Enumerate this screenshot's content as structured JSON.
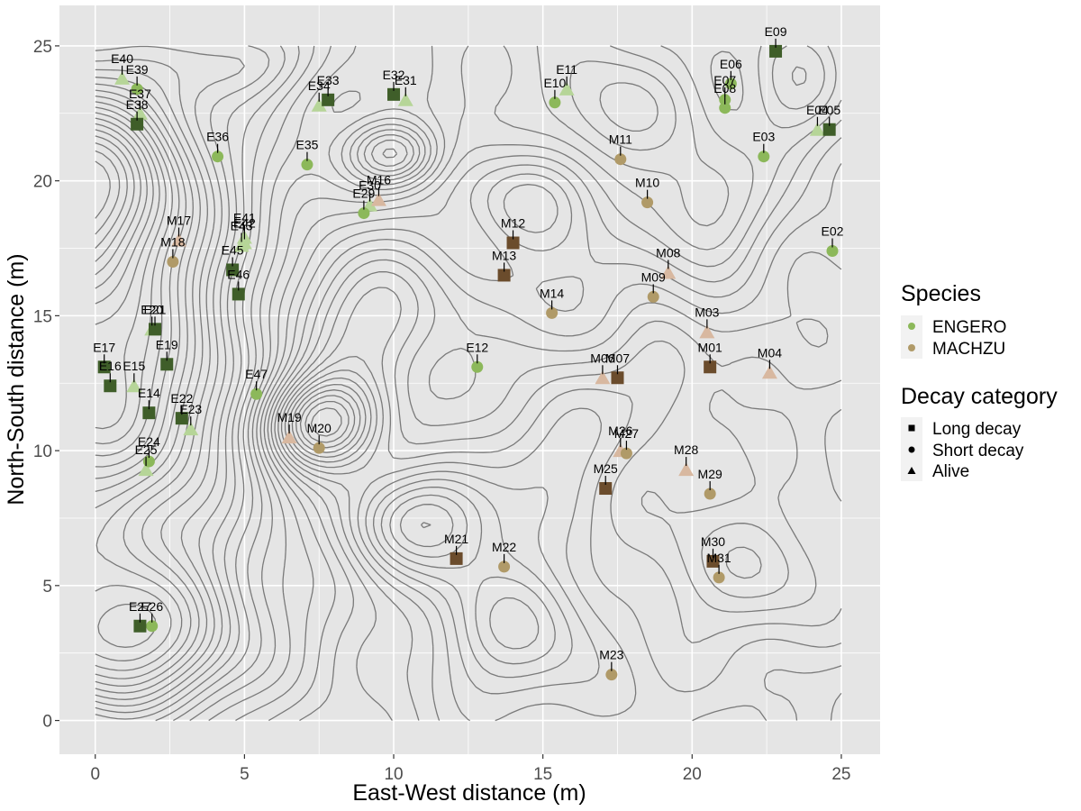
{
  "chart_data": {
    "type": "scatter",
    "xlabel": "East-West distance (m)",
    "ylabel": "North-South distance (m)",
    "xlim": [
      -1.2,
      26.3
    ],
    "ylim": [
      -1.25,
      26.5
    ],
    "x_ticks": [
      "0",
      "5",
      "10",
      "15",
      "20",
      "25"
    ],
    "y_ticks": [
      "0",
      "5",
      "10",
      "15",
      "20",
      "25"
    ],
    "x_tick_values": [
      0,
      5,
      10,
      15,
      20,
      25
    ],
    "y_tick_values": [
      0,
      5,
      10,
      15,
      20,
      25
    ],
    "grid": true,
    "background_contours": true,
    "colors": {
      "panel": "#e5e5e5",
      "grid": "#ffffff",
      "contour": "#6e6e6e",
      "engero_long": "#3f5e29",
      "engero_short": "#8cb85a",
      "engero_alive": "#b6d598",
      "machzu_long": "#6b4c2c",
      "machzu_short": "#b09a68",
      "machzu_alive": "#d8b8a0"
    },
    "legend": {
      "placement": "right",
      "species_title": "Species",
      "species": [
        {
          "label": "ENGERO",
          "color": "#8cb85a"
        },
        {
          "label": "MACHZU",
          "color": "#b09a68"
        }
      ],
      "decay_title": "Decay category",
      "decay": [
        {
          "label": "Long decay",
          "shape": "square"
        },
        {
          "label": "Short decay",
          "shape": "circle"
        },
        {
          "label": "Alive",
          "shape": "triangle"
        }
      ]
    },
    "points": [
      {
        "id": "E02",
        "species": "ENGERO",
        "decay": "short",
        "x": 24.7,
        "y": 17.4
      },
      {
        "id": "E03",
        "species": "ENGERO",
        "decay": "short",
        "x": 22.4,
        "y": 20.9
      },
      {
        "id": "E04",
        "species": "ENGERO",
        "decay": "alive",
        "x": 24.2,
        "y": 21.9
      },
      {
        "id": "E05",
        "species": "ENGERO",
        "decay": "long",
        "x": 24.6,
        "y": 21.9
      },
      {
        "id": "E06",
        "species": "ENGERO",
        "decay": "short",
        "x": 21.3,
        "y": 23.6
      },
      {
        "id": "E07",
        "species": "ENGERO",
        "decay": "short",
        "x": 21.1,
        "y": 23.0
      },
      {
        "id": "E08",
        "species": "ENGERO",
        "decay": "short",
        "x": 21.1,
        "y": 22.7
      },
      {
        "id": "E09",
        "species": "ENGERO",
        "decay": "long",
        "x": 22.8,
        "y": 24.8
      },
      {
        "id": "E10",
        "species": "ENGERO",
        "decay": "short",
        "x": 15.4,
        "y": 22.9
      },
      {
        "id": "E11",
        "species": "ENGERO",
        "decay": "alive",
        "x": 15.8,
        "y": 23.4
      },
      {
        "id": "E12",
        "species": "ENGERO",
        "decay": "short",
        "x": 12.8,
        "y": 13.1
      },
      {
        "id": "E14",
        "species": "ENGERO",
        "decay": "long",
        "x": 1.8,
        "y": 11.4
      },
      {
        "id": "E15",
        "species": "ENGERO",
        "decay": "alive",
        "x": 1.3,
        "y": 12.4
      },
      {
        "id": "E16",
        "species": "ENGERO",
        "decay": "long",
        "x": 0.5,
        "y": 12.4
      },
      {
        "id": "E17",
        "species": "ENGERO",
        "decay": "long",
        "x": 0.3,
        "y": 13.1
      },
      {
        "id": "E19",
        "species": "ENGERO",
        "decay": "long",
        "x": 2.4,
        "y": 13.2
      },
      {
        "id": "E20",
        "species": "ENGERO",
        "decay": "alive",
        "x": 1.9,
        "y": 14.5
      },
      {
        "id": "E21",
        "species": "ENGERO",
        "decay": "long",
        "x": 2.0,
        "y": 14.5
      },
      {
        "id": "E22",
        "species": "ENGERO",
        "decay": "long",
        "x": 2.9,
        "y": 11.2
      },
      {
        "id": "E23",
        "species": "ENGERO",
        "decay": "alive",
        "x": 3.2,
        "y": 10.8
      },
      {
        "id": "E24",
        "species": "ENGERO",
        "decay": "short",
        "x": 1.8,
        "y": 9.6
      },
      {
        "id": "E25",
        "species": "ENGERO",
        "decay": "alive",
        "x": 1.7,
        "y": 9.3
      },
      {
        "id": "E26",
        "species": "ENGERO",
        "decay": "short",
        "x": 1.9,
        "y": 3.5
      },
      {
        "id": "E27",
        "species": "ENGERO",
        "decay": "long",
        "x": 1.5,
        "y": 3.5
      },
      {
        "id": "E29",
        "species": "ENGERO",
        "decay": "short",
        "x": 9.0,
        "y": 18.8
      },
      {
        "id": "E30",
        "species": "ENGERO",
        "decay": "alive",
        "x": 9.2,
        "y": 19.1
      },
      {
        "id": "E31",
        "species": "ENGERO",
        "decay": "alive",
        "x": 10.4,
        "y": 23.0
      },
      {
        "id": "E32",
        "species": "ENGERO",
        "decay": "long",
        "x": 10.0,
        "y": 23.2
      },
      {
        "id": "E33",
        "species": "ENGERO",
        "decay": "long",
        "x": 7.8,
        "y": 23.0
      },
      {
        "id": "E34",
        "species": "ENGERO",
        "decay": "alive",
        "x": 7.5,
        "y": 22.8
      },
      {
        "id": "E35",
        "species": "ENGERO",
        "decay": "short",
        "x": 7.1,
        "y": 20.6
      },
      {
        "id": "E36",
        "species": "ENGERO",
        "decay": "short",
        "x": 4.1,
        "y": 20.9
      },
      {
        "id": "E37",
        "species": "ENGERO",
        "decay": "alive",
        "x": 1.5,
        "y": 22.5
      },
      {
        "id": "E38",
        "species": "ENGERO",
        "decay": "long",
        "x": 1.4,
        "y": 22.1
      },
      {
        "id": "E39",
        "species": "ENGERO",
        "decay": "short",
        "x": 1.4,
        "y": 23.4
      },
      {
        "id": "E40",
        "species": "ENGERO",
        "decay": "alive",
        "x": 0.9,
        "y": 23.8
      },
      {
        "id": "E41",
        "species": "ENGERO",
        "decay": "alive",
        "x": 5.0,
        "y": 17.9
      },
      {
        "id": "E42",
        "species": "ENGERO",
        "decay": "alive",
        "x": 5.0,
        "y": 17.7
      },
      {
        "id": "E43",
        "species": "ENGERO",
        "decay": "alive",
        "x": 4.9,
        "y": 17.6
      },
      {
        "id": "E45",
        "species": "ENGERO",
        "decay": "long",
        "x": 4.6,
        "y": 16.7
      },
      {
        "id": "E46",
        "species": "ENGERO",
        "decay": "long",
        "x": 4.8,
        "y": 15.8
      },
      {
        "id": "E47",
        "species": "ENGERO",
        "decay": "short",
        "x": 5.4,
        "y": 12.1
      },
      {
        "id": "M01",
        "species": "MACHZU",
        "decay": "long",
        "x": 20.6,
        "y": 13.1
      },
      {
        "id": "M03",
        "species": "MACHZU",
        "decay": "alive",
        "x": 20.5,
        "y": 14.4
      },
      {
        "id": "M04",
        "species": "MACHZU",
        "decay": "alive",
        "x": 22.6,
        "y": 12.9
      },
      {
        "id": "M06",
        "species": "MACHZU",
        "decay": "alive",
        "x": 17.0,
        "y": 12.7
      },
      {
        "id": "M07",
        "species": "MACHZU",
        "decay": "long",
        "x": 17.5,
        "y": 12.7
      },
      {
        "id": "M08",
        "species": "MACHZU",
        "decay": "alive",
        "x": 19.2,
        "y": 16.6
      },
      {
        "id": "M09",
        "species": "MACHZU",
        "decay": "short",
        "x": 18.7,
        "y": 15.7
      },
      {
        "id": "M10",
        "species": "MACHZU",
        "decay": "short",
        "x": 18.5,
        "y": 19.2
      },
      {
        "id": "M11",
        "species": "MACHZU",
        "decay": "short",
        "x": 17.6,
        "y": 20.8
      },
      {
        "id": "M12",
        "species": "MACHZU",
        "decay": "long",
        "x": 14.0,
        "y": 17.7
      },
      {
        "id": "M13",
        "species": "MACHZU",
        "decay": "long",
        "x": 13.7,
        "y": 16.5
      },
      {
        "id": "M14",
        "species": "MACHZU",
        "decay": "short",
        "x": 15.3,
        "y": 15.1
      },
      {
        "id": "M16",
        "species": "MACHZU",
        "decay": "alive",
        "x": 9.5,
        "y": 19.3
      },
      {
        "id": "M17",
        "species": "MACHZU",
        "decay": "alive",
        "x": 2.8,
        "y": 17.8
      },
      {
        "id": "M18",
        "species": "MACHZU",
        "decay": "short",
        "x": 2.6,
        "y": 17.0
      },
      {
        "id": "M19",
        "species": "MACHZU",
        "decay": "alive",
        "x": 6.5,
        "y": 10.5
      },
      {
        "id": "M20",
        "species": "MACHZU",
        "decay": "short",
        "x": 7.5,
        "y": 10.1
      },
      {
        "id": "M21",
        "species": "MACHZU",
        "decay": "long",
        "x": 12.1,
        "y": 6.0
      },
      {
        "id": "M22",
        "species": "MACHZU",
        "decay": "short",
        "x": 13.7,
        "y": 5.7
      },
      {
        "id": "M23",
        "species": "MACHZU",
        "decay": "short",
        "x": 17.3,
        "y": 1.7
      },
      {
        "id": "M25",
        "species": "MACHZU",
        "decay": "long",
        "x": 17.1,
        "y": 8.6
      },
      {
        "id": "M26",
        "species": "MACHZU",
        "decay": "alive",
        "x": 17.6,
        "y": 10.0
      },
      {
        "id": "M27",
        "species": "MACHZU",
        "decay": "short",
        "x": 17.8,
        "y": 9.9
      },
      {
        "id": "M28",
        "species": "MACHZU",
        "decay": "alive",
        "x": 19.8,
        "y": 9.3
      },
      {
        "id": "M29",
        "species": "MACHZU",
        "decay": "short",
        "x": 20.6,
        "y": 8.4
      },
      {
        "id": "M30",
        "species": "MACHZU",
        "decay": "long",
        "x": 20.7,
        "y": 5.9
      },
      {
        "id": "M31",
        "species": "MACHZU",
        "decay": "short",
        "x": 20.9,
        "y": 5.3
      }
    ]
  }
}
